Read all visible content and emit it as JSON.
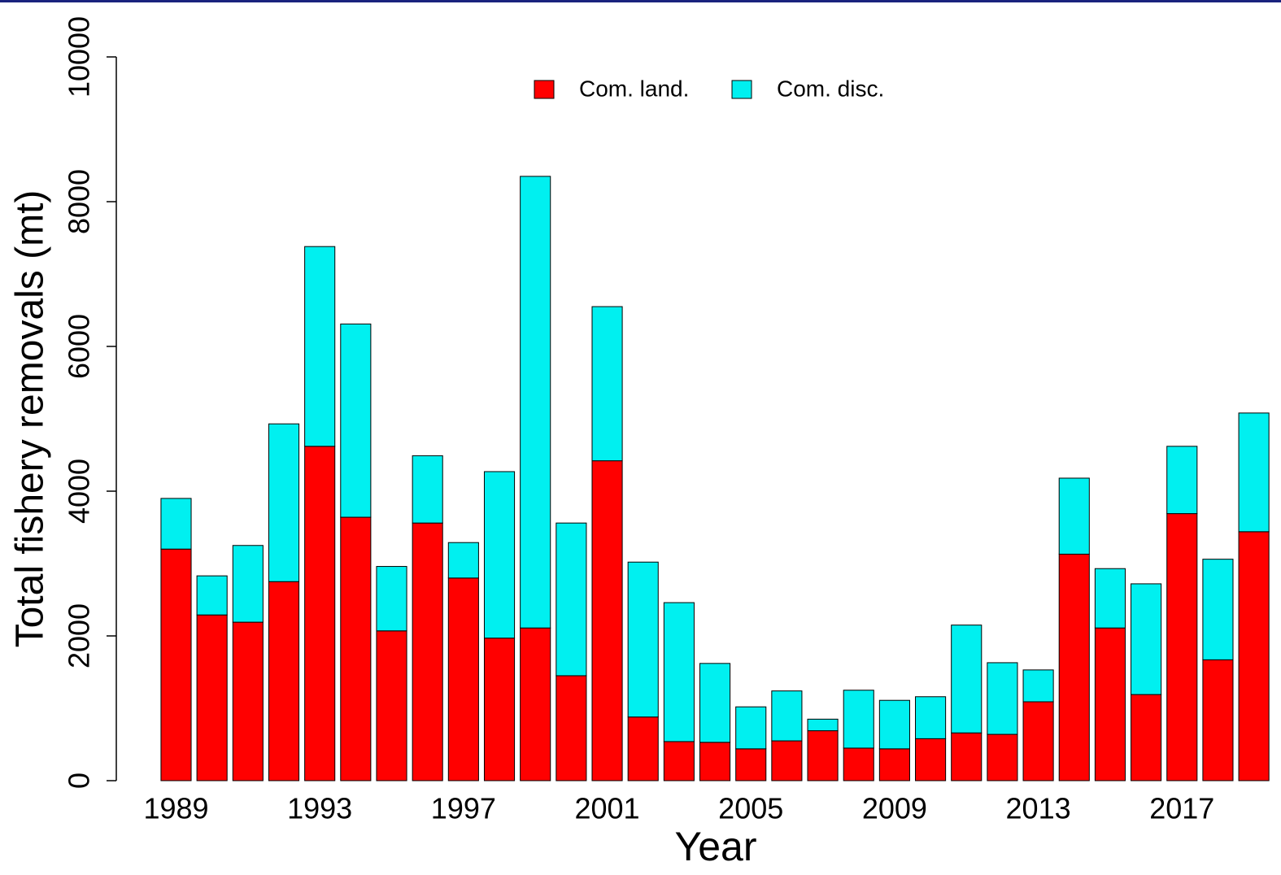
{
  "chart_data": {
    "type": "stacked-bar",
    "x_label": "Year",
    "y_label": "Total fishery removals (mt)",
    "x": [
      1989,
      1990,
      1991,
      1992,
      1993,
      1994,
      1995,
      1996,
      1997,
      1998,
      1999,
      2000,
      2001,
      2002,
      2003,
      2004,
      2005,
      2006,
      2007,
      2008,
      2009,
      2010,
      2011,
      2012,
      2013,
      2014,
      2015,
      2016,
      2017,
      2018,
      2019
    ],
    "xlim": [
      1988.5,
      2019.5
    ],
    "xticks": [
      1989,
      1993,
      1997,
      2001,
      2005,
      2009,
      2013,
      2017
    ],
    "ylim": [
      0,
      10000
    ],
    "yticks": [
      0,
      2000,
      4000,
      6000,
      8000,
      10000
    ],
    "legend": "top",
    "series": [
      {
        "name": "Com. land.",
        "color": "#ff0000",
        "values": [
          3200,
          2290,
          2190,
          2750,
          4620,
          3640,
          2070,
          3560,
          2800,
          1970,
          2110,
          1450,
          4420,
          880,
          540,
          530,
          440,
          550,
          690,
          450,
          440,
          580,
          660,
          640,
          1090,
          3130,
          2110,
          1190,
          3690,
          1670,
          3440
        ]
      },
      {
        "name": "Com. disc.",
        "color": "#00f0f0",
        "values": [
          700,
          540,
          1060,
          2180,
          2760,
          2670,
          890,
          930,
          490,
          2300,
          6240,
          2110,
          2130,
          2140,
          1920,
          1090,
          580,
          690,
          160,
          800,
          670,
          580,
          1490,
          990,
          440,
          1050,
          820,
          1530,
          930,
          1390,
          1640
        ]
      }
    ]
  }
}
